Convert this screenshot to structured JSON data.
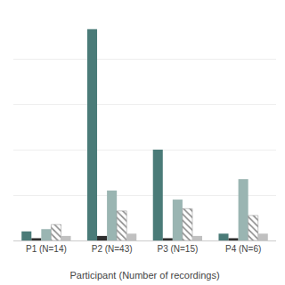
{
  "chart_data": {
    "type": "bar",
    "xlabel": "Participant (Number of recordings)",
    "categories": [
      "P1 (N=14)",
      "P2 (N=43)",
      "P3 (N=15)",
      "P4 (N=6)"
    ],
    "series": [
      {
        "color": "#4a7b78",
        "values": [
          4,
          93,
          40,
          3
        ]
      },
      {
        "color": "#2e2e2e",
        "values": [
          1,
          2,
          1,
          1
        ]
      },
      {
        "color": "#9ab5b2",
        "values": [
          5,
          22,
          18,
          27
        ]
      },
      {
        "color": "#888888",
        "marker": "hatch",
        "values": [
          7,
          13,
          14,
          11
        ]
      },
      {
        "color": "#c0c0c0",
        "values": [
          2,
          3,
          2,
          3
        ]
      }
    ],
    "ylim": [
      0,
      100
    ],
    "yticks": [
      0,
      20,
      40,
      60,
      80,
      100
    ],
    "grid": true,
    "tick_labels": "x"
  }
}
